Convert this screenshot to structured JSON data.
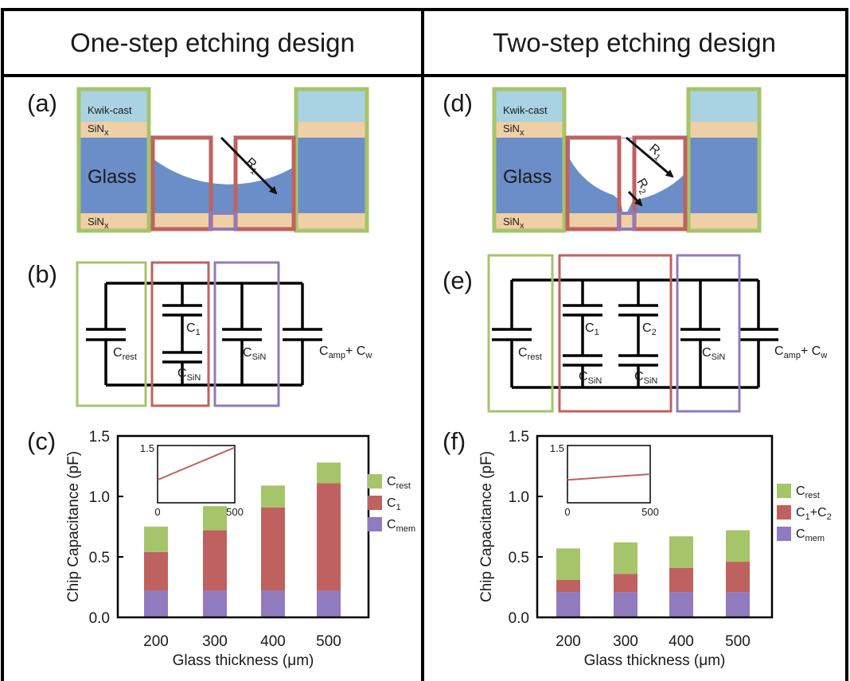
{
  "headers": {
    "left": "One-step etching design",
    "right": "Two-step etching design"
  },
  "panel_labels": [
    "(a)",
    "(b)",
    "(c)",
    "(d)",
    "(e)",
    "(f)"
  ],
  "layers": {
    "kwikcast": "Kwik-cast",
    "sin_base": "SiN",
    "sin_sub": "x",
    "glass": "Glass",
    "r": "R",
    "r1_sub": "1",
    "r2_sub": "2"
  },
  "circuit": {
    "c_base": "C",
    "rest_sub": "rest",
    "one_sub": "1",
    "two_sub": "2",
    "sin_sub": "SiN",
    "amp_sub": "amp",
    "plus": "+ C",
    "w_sub": "w"
  },
  "colors": {
    "glass": "#6b8ec8",
    "kwikcast": "#a9d3e2",
    "sin": "#efcfa6",
    "green": "#a6c46a",
    "red": "#bf625f",
    "purple": "#8f7bbe"
  },
  "chart_data": [
    {
      "type": "bar",
      "panel": "(c)",
      "categories": [
        "200",
        "300",
        "400",
        "500"
      ],
      "series": [
        {
          "name": "C",
          "name_sub": "mem",
          "values": [
            0.22,
            0.22,
            0.22,
            0.22
          ]
        },
        {
          "name": "C",
          "name_sub": "1",
          "values": [
            0.32,
            0.5,
            0.69,
            0.89
          ]
        },
        {
          "name": "C",
          "name_sub": "rest",
          "values": [
            0.21,
            0.2,
            0.18,
            0.17
          ]
        }
      ],
      "legend_order": [
        "C|rest",
        "C|1",
        "C|mem"
      ],
      "xlabel": "Glass thickness (μm)",
      "ylabel": "Chip Capacitance (pF)",
      "ylim": [
        0,
        1.5
      ],
      "yticks": [
        "0.0",
        "0.5",
        "1.0",
        "1.5"
      ],
      "legend_position": "right",
      "inset": {
        "type": "line",
        "x": [
          0,
          500
        ],
        "y_start": 0.6,
        "y_end": 1.45,
        "ytick": "1.5",
        "xticks": [
          "0",
          "500"
        ]
      }
    },
    {
      "type": "bar",
      "panel": "(f)",
      "categories": [
        "200",
        "300",
        "400",
        "500"
      ],
      "series": [
        {
          "name": "C",
          "name_sub": "mem",
          "values": [
            0.21,
            0.21,
            0.21,
            0.21
          ]
        },
        {
          "name": "C",
          "name_sub": "1",
          "name_plus": "+C",
          "name_sub2": "2",
          "values": [
            0.1,
            0.15,
            0.2,
            0.25
          ]
        },
        {
          "name": "C",
          "name_sub": "rest",
          "values": [
            0.26,
            0.26,
            0.26,
            0.26
          ]
        }
      ],
      "legend_order": [
        "C|rest",
        "C|1+C2",
        "C|mem"
      ],
      "xlabel": "Glass thickness (μm)",
      "ylabel": "Chip Capacitance (pF)",
      "ylim": [
        0,
        1.5
      ],
      "yticks": [
        "0.0",
        "0.5",
        "1.0",
        "1.5"
      ],
      "legend_position": "right",
      "inset": {
        "type": "line",
        "x": [
          0,
          500
        ],
        "y_start": 0.6,
        "y_end": 0.75,
        "ytick": "1.5",
        "xticks": [
          "0",
          "500"
        ]
      }
    }
  ]
}
